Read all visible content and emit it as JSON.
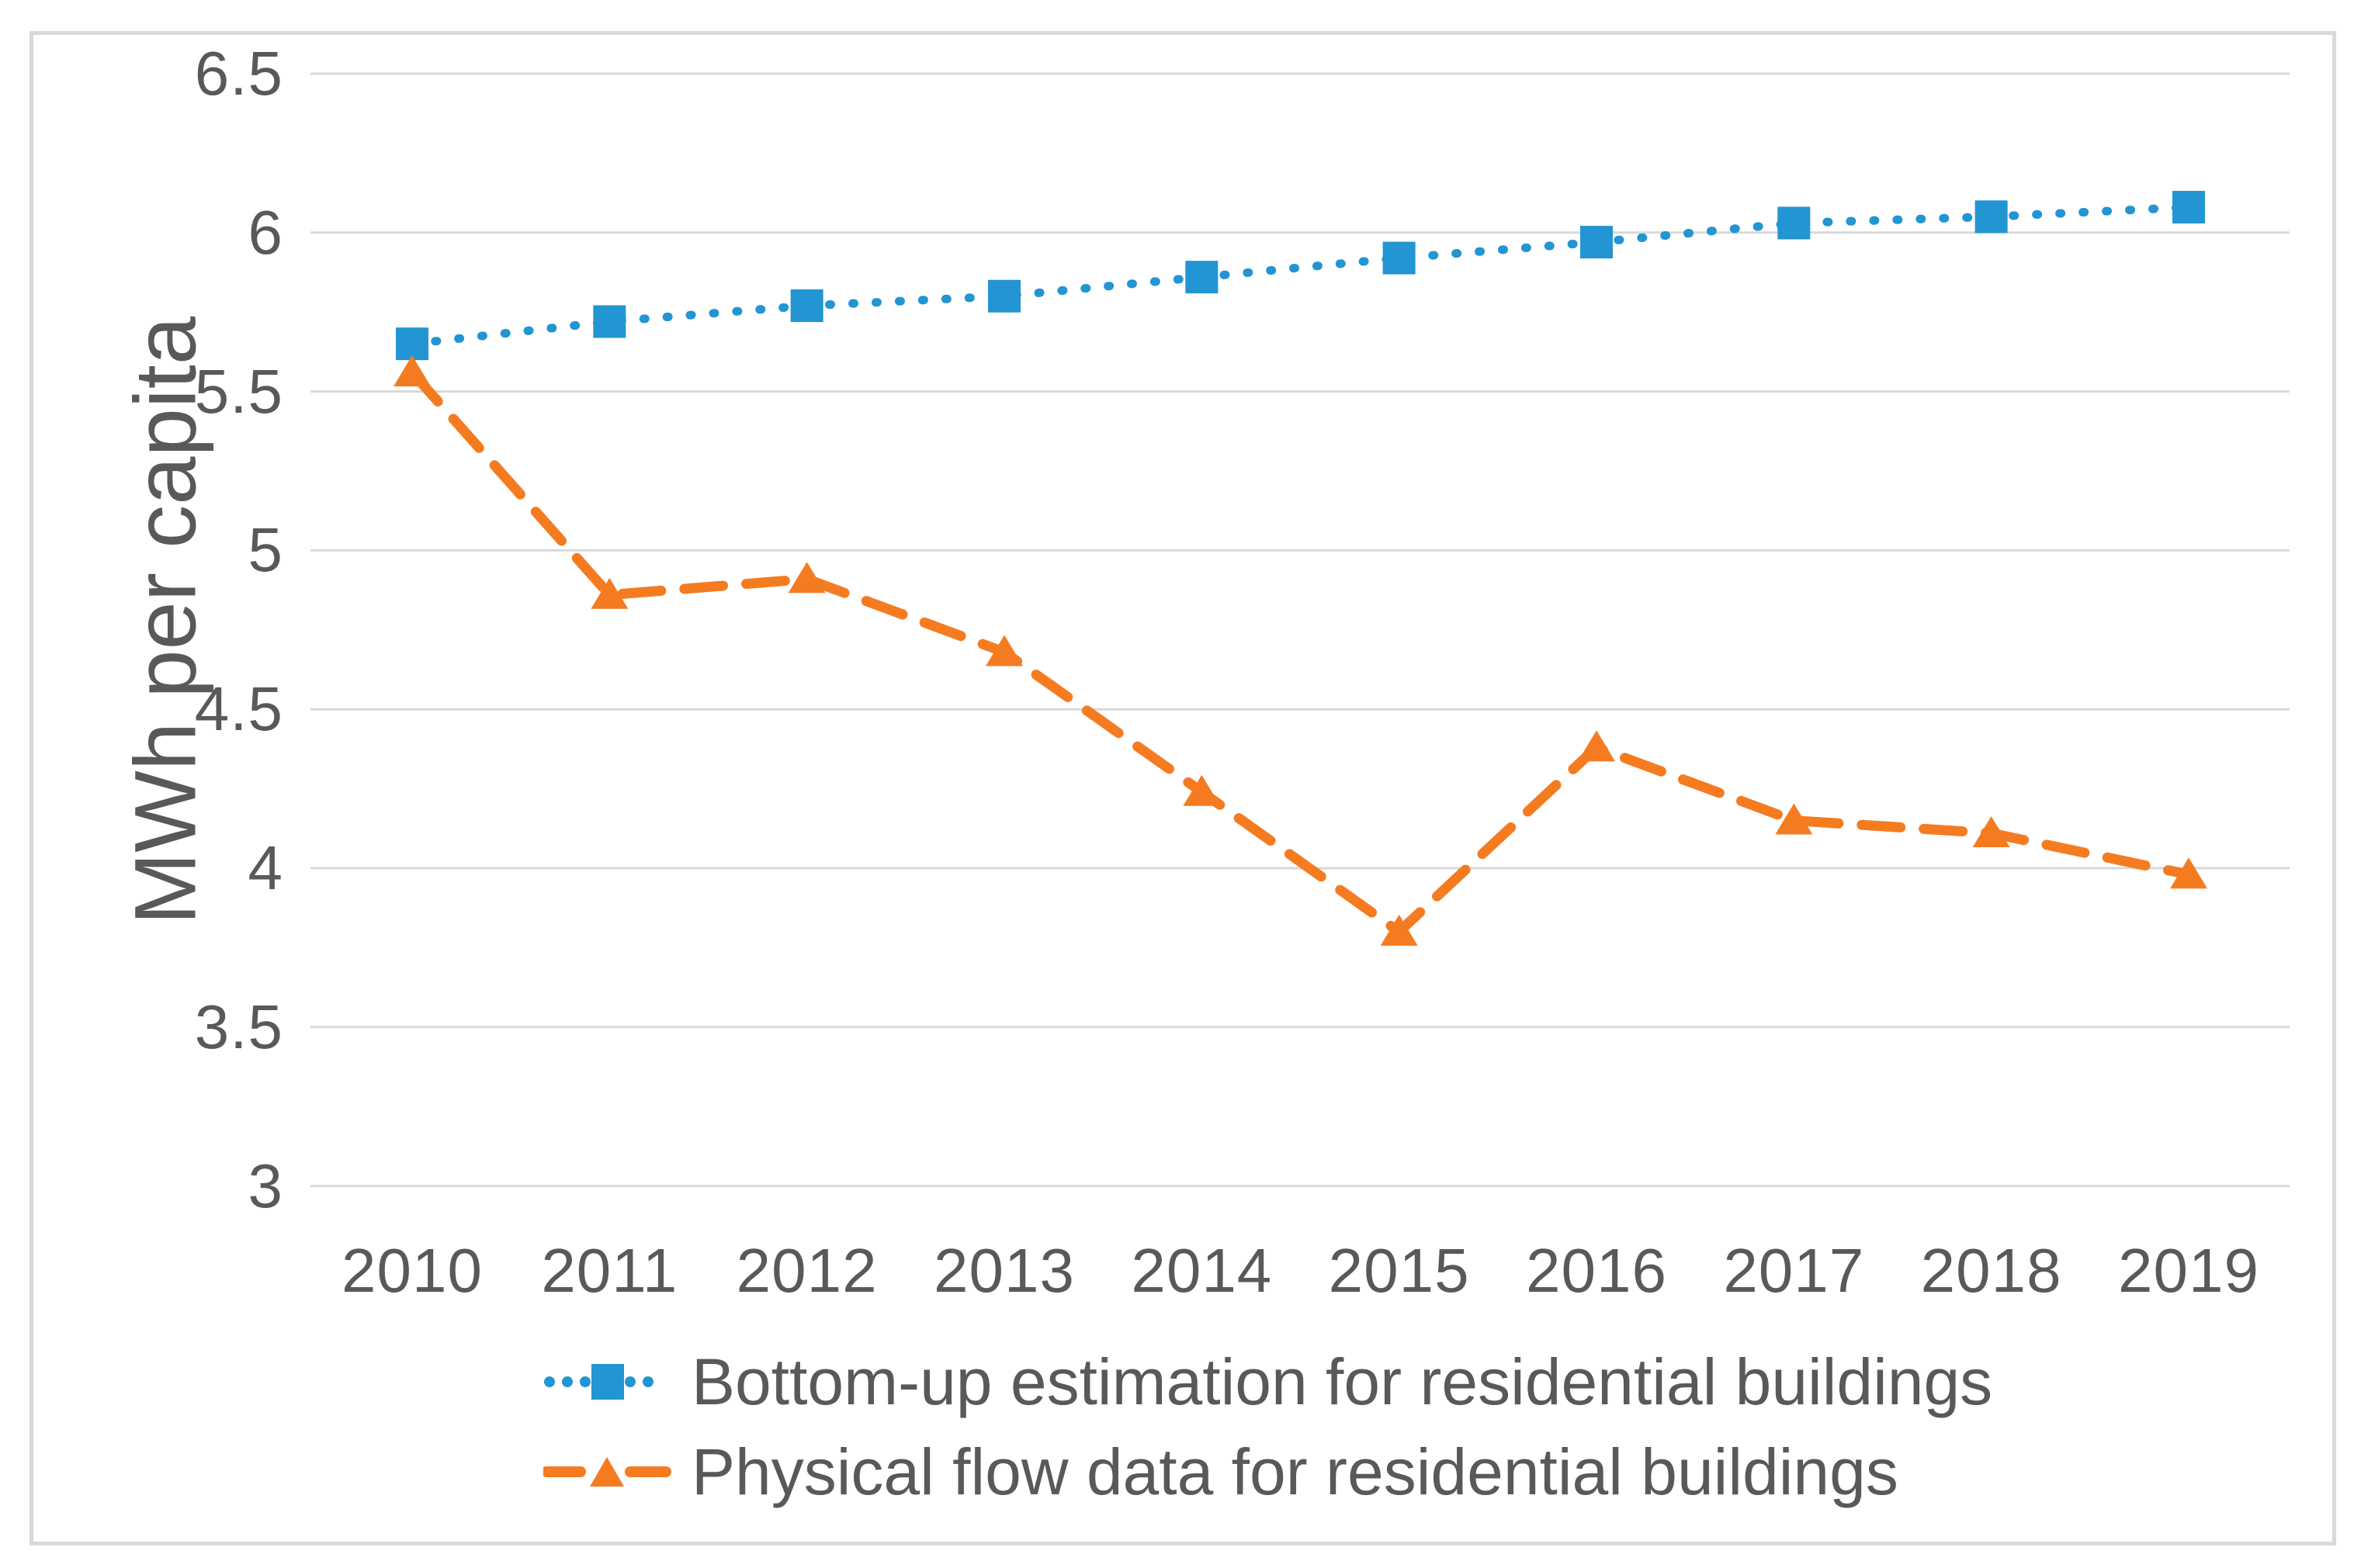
{
  "figure": {
    "background": "#ffffff",
    "border_color": "#D9D9D9",
    "text_color": "#595959",
    "grid_color": "#D9D9D9"
  },
  "chart_data": {
    "type": "line",
    "title": "",
    "xlabel": "",
    "ylabel": "MWh per capita",
    "x": [
      "2010",
      "2011",
      "2012",
      "2013",
      "2014",
      "2015",
      "2016",
      "2017",
      "2018",
      "2019"
    ],
    "series": [
      {
        "name": "Bottom-up estimation for residential buildings",
        "color": "#2295D2",
        "line_style": "dotted",
        "marker": "square",
        "values": [
          5.65,
          5.72,
          5.77,
          5.8,
          5.86,
          5.92,
          5.97,
          6.03,
          6.05,
          6.08
        ]
      },
      {
        "name": "Physical flow data for residential buildings",
        "color": "#F57B21",
        "line_style": "dashed",
        "marker": "triangle",
        "values": [
          5.56,
          4.86,
          4.91,
          4.68,
          4.24,
          3.8,
          4.38,
          4.15,
          4.11,
          3.98
        ]
      }
    ],
    "ylim": [
      3,
      6.5
    ],
    "yticks": [
      3,
      3.5,
      4,
      4.5,
      5,
      5.5,
      6,
      6.5
    ],
    "ytick_labels": [
      "3",
      "3.5",
      "4",
      "4.5",
      "5",
      "5.5",
      "6",
      "6.5"
    ],
    "grid": true,
    "legend_position": "bottom-left"
  }
}
